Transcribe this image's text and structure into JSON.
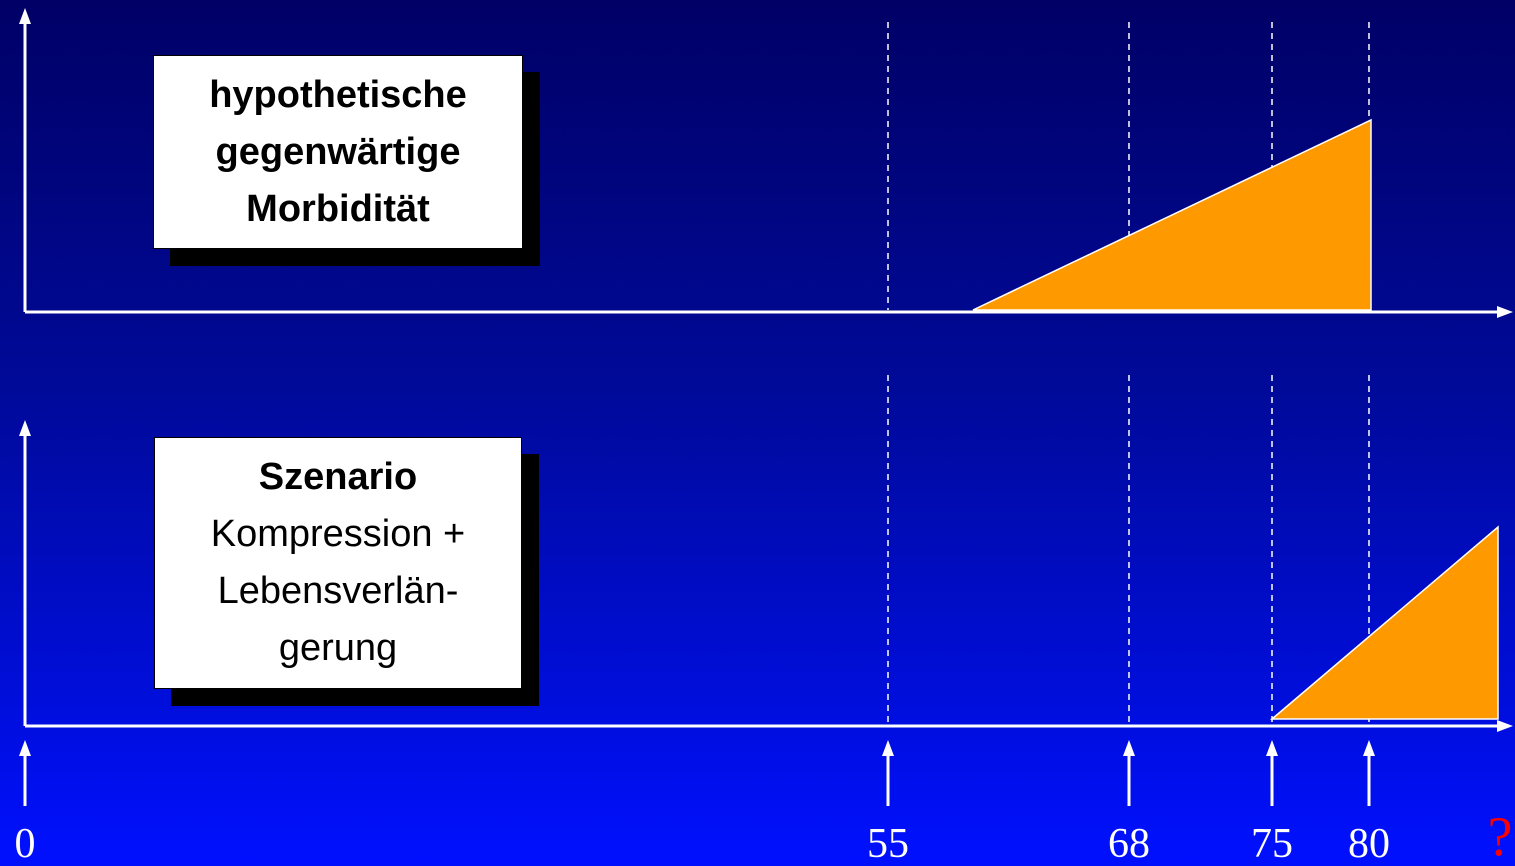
{
  "top_panel": {
    "label_lines": [
      "hypothetische",
      "gegenwärtige",
      "Morbidität"
    ]
  },
  "bottom_panel": {
    "title": "Szenario",
    "label_lines": [
      "Kompression +",
      "Lebensverlän-",
      "gerung"
    ]
  },
  "axis": {
    "ticks": [
      "0",
      "55",
      "68",
      "75",
      "80"
    ],
    "unknown_end": "?"
  },
  "colors": {
    "background_top": "#000066",
    "background_bottom": "#0010ff",
    "morbidity_fill": "#ff9900",
    "axis": "#ffffff",
    "question_mark": "#ff0000"
  },
  "icons": [
    "arrow-up-icon",
    "arrow-right-icon"
  ]
}
